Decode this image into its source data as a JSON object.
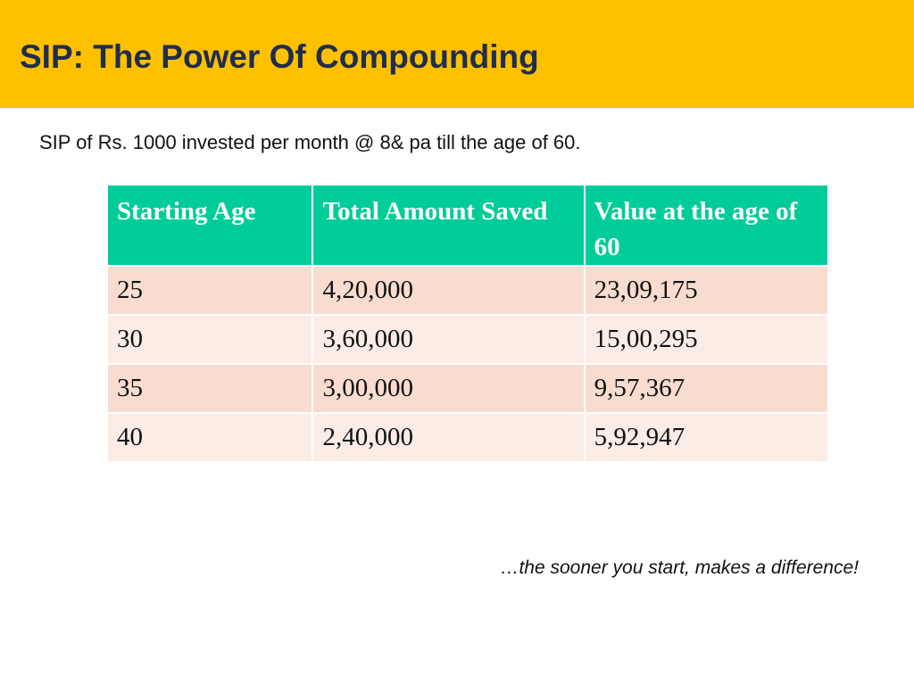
{
  "slide": {
    "title": "SIP: The Power Of Compounding",
    "subtitle": "SIP of Rs. 1000 invested per month @ 8& pa till the age of 60.",
    "tagline": "…the sooner you start, makes a difference!"
  },
  "table": {
    "headers": [
      "Starting Age",
      "Total Amount Saved",
      "Value at the age of 60"
    ],
    "rows": [
      [
        "25",
        "4,20,000",
        "23,09,175"
      ],
      [
        "30",
        "3,60,000",
        "15,00,295"
      ],
      [
        "35",
        "3,00,000",
        "9,57,367"
      ],
      [
        "40",
        "2,40,000",
        "5,92,947"
      ]
    ]
  },
  "colors": {
    "header_band": "#ffc000",
    "title_text": "#1f2d4e",
    "table_header": "#00cc99",
    "row_odd": "#f7dccf",
    "row_even": "#fbece6"
  }
}
